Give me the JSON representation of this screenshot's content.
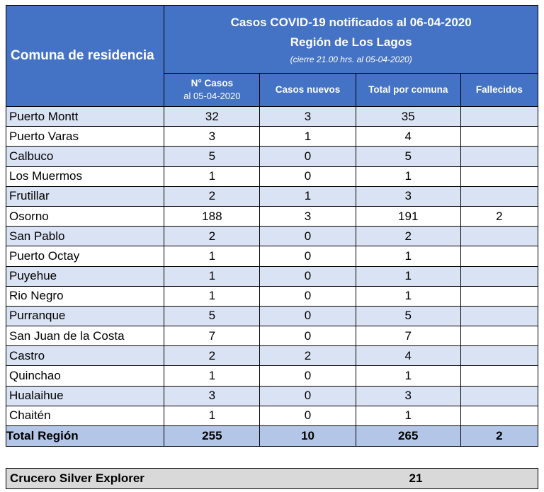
{
  "header": {
    "row_label": "Comuna de residencia",
    "title": "Casos COVID-19 notificados al 06-04-2020",
    "region": "Región de Los Lagos",
    "note": "(cierre 21.00 hrs. al 05-04-2020)",
    "columns": {
      "cases_main": "N° Casos",
      "cases_sub": "al 05-04-2020",
      "new_cases": "Casos nuevos",
      "total": "Total por comuna",
      "deaths": "Fallecidos"
    }
  },
  "rows": [
    {
      "comuna": "Puerto Montt",
      "casos": "32",
      "nuevos": "3",
      "total": "35",
      "fallecidos": ""
    },
    {
      "comuna": "Puerto Varas",
      "casos": "3",
      "nuevos": "1",
      "total": "4",
      "fallecidos": ""
    },
    {
      "comuna": "Calbuco",
      "casos": "5",
      "nuevos": "0",
      "total": "5",
      "fallecidos": ""
    },
    {
      "comuna": "Los Muermos",
      "casos": "1",
      "nuevos": "0",
      "total": "1",
      "fallecidos": ""
    },
    {
      "comuna": "Frutillar",
      "casos": "2",
      "nuevos": "1",
      "total": "3",
      "fallecidos": ""
    },
    {
      "comuna": "Osorno",
      "casos": "188",
      "nuevos": "3",
      "total": "191",
      "fallecidos": "2"
    },
    {
      "comuna": "San Pablo",
      "casos": "2",
      "nuevos": "0",
      "total": "2",
      "fallecidos": ""
    },
    {
      "comuna": "Puerto Octay",
      "casos": "1",
      "nuevos": "0",
      "total": "1",
      "fallecidos": ""
    },
    {
      "comuna": "Puyehue",
      "casos": "1",
      "nuevos": "0",
      "total": "1",
      "fallecidos": ""
    },
    {
      "comuna": "Rio Negro",
      "casos": "1",
      "nuevos": "0",
      "total": "1",
      "fallecidos": ""
    },
    {
      "comuna": "Purranque",
      "casos": "5",
      "nuevos": "0",
      "total": "5",
      "fallecidos": ""
    },
    {
      "comuna": "San Juan de la Costa",
      "casos": "7",
      "nuevos": "0",
      "total": "7",
      "fallecidos": ""
    },
    {
      "comuna": "Castro",
      "casos": "2",
      "nuevos": "2",
      "total": "4",
      "fallecidos": ""
    },
    {
      "comuna": "Quinchao",
      "casos": "1",
      "nuevos": "0",
      "total": "1",
      "fallecidos": ""
    },
    {
      "comuna": "Hualaihue",
      "casos": "3",
      "nuevos": "0",
      "total": "3",
      "fallecidos": ""
    },
    {
      "comuna": "Chaitén",
      "casos": "1",
      "nuevos": "0",
      "total": "1",
      "fallecidos": ""
    }
  ],
  "total_row": {
    "label": "Total Región",
    "casos": "255",
    "nuevos": "10",
    "total": "265",
    "fallecidos": "2"
  },
  "cruise": {
    "label": "Crucero Silver Explorer",
    "value": "21"
  },
  "colors": {
    "header_bg": "#4472c4",
    "band_bg": "#dae3f3",
    "total_bg": "#b4c6e7",
    "cruise_bg": "#d9d9d9"
  }
}
